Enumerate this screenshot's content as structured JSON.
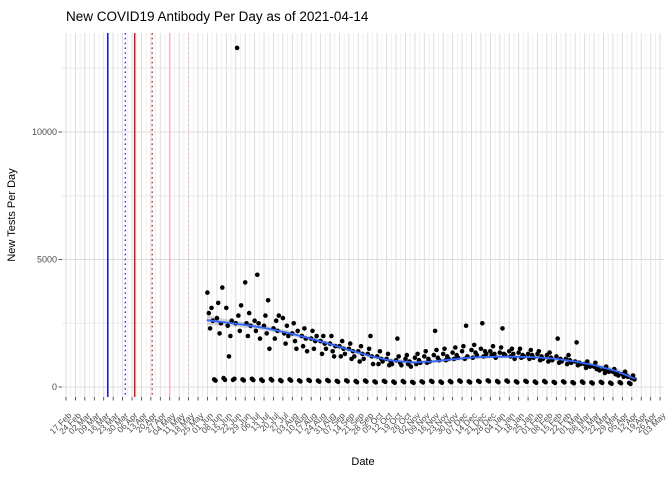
{
  "chart_data": {
    "type": "scatter",
    "title": "New COVID19 Antibody Per Day as of 2021-04-14",
    "xlabel": "Date",
    "ylabel": "New Tests Per Day",
    "legend_position": "none",
    "grid": "major+minor",
    "x_start_date": "2020-02-17",
    "x_break_labels": [
      "17 Feb",
      "24 Feb",
      "02 Mar",
      "09 Mar",
      "16 Mar",
      "23 Mar",
      "30 Mar",
      "06 Apr",
      "13 Apr",
      "20 Apr",
      "27 Apr",
      "04 May",
      "11 May",
      "18 May",
      "25 May",
      "01 Jun",
      "08 Jun",
      "15 Jun",
      "22 Jun",
      "29 Jun",
      "06 Jul",
      "13 Jul",
      "20 Jul",
      "27 Jul",
      "03 Aug",
      "10 Aug",
      "17 Aug",
      "24 Aug",
      "31 Aug",
      "07 Sep",
      "14 Sep",
      "21 Sep",
      "28 Sep",
      "05 Oct",
      "12 Oct",
      "19 Oct",
      "26 Oct",
      "02 Nov",
      "09 Nov",
      "16 Nov",
      "23 Nov",
      "30 Nov",
      "07 Dec",
      "14 Dec",
      "21 Dec",
      "28 Dec",
      "04 Jan",
      "11 Jan",
      "18 Jan",
      "25 Jan",
      "01 Feb",
      "08 Feb",
      "15 Feb",
      "22 Feb",
      "01 Mar",
      "08 Mar",
      "15 Mar",
      "22 Mar",
      "29 Mar",
      "05 Apr",
      "12 Apr",
      "19 Apr",
      "26 Apr",
      "03 May"
    ],
    "y_major_ticks": [
      0,
      5000,
      10000
    ],
    "y_tick_labels": [
      "0",
      "5000",
      "10000"
    ],
    "y_minor_gridlines": [
      2500,
      7500,
      12500
    ],
    "ylim": [
      -400,
      13900
    ],
    "colors": {
      "point": "#000000",
      "smooth_line": "#3366ff",
      "ribbon": "#999999",
      "grid_major": "#dcdcdc",
      "grid_minor": "#ececec",
      "tick": "#333333",
      "vline_blue": "#1414d0",
      "vline_red": "#d01414",
      "vline_pink": "#f9b4c4"
    },
    "reference_lines": [
      {
        "date": "2020-03-19",
        "color": "#1414d0",
        "style": "solid"
      },
      {
        "date": "2020-04-01",
        "color": "#1414d0",
        "style": "dotted"
      },
      {
        "date": "2020-04-08",
        "color": "#d01414",
        "style": "solid"
      },
      {
        "date": "2020-04-21",
        "color": "#d01414",
        "style": "dotted"
      },
      {
        "date": "2020-05-04",
        "color": "#f9b4c4",
        "style": "solid"
      },
      {
        "date": "2020-05-18",
        "color": "#f9b4c4",
        "style": "dotted"
      }
    ],
    "points_start_date": "2020-06-01",
    "weekly_points": [
      [
        3700,
        2900,
        2300,
        3100,
        2600,
        300,
        250
      ],
      [
        2700,
        3300,
        2100,
        2500,
        3900,
        350,
        280
      ],
      [
        3100,
        2400,
        1200,
        2000,
        2600,
        280,
        320
      ],
      [
        2500,
        13300,
        2800,
        2200,
        3200,
        300,
        260
      ],
      [
        4100,
        2500,
        2000,
        2900,
        2400,
        320,
        270
      ],
      [
        2600,
        2200,
        4400,
        2500,
        1900,
        290,
        240
      ],
      [
        2400,
        2800,
        2100,
        3400,
        1500,
        310,
        260
      ],
      [
        2300,
        1900,
        2600,
        2200,
        2800,
        270,
        230
      ],
      [
        2700,
        2100,
        1700,
        2400,
        2000,
        300,
        250
      ],
      [
        2100,
        2500,
        1800,
        1500,
        2200,
        260,
        220
      ],
      [
        2000,
        1600,
        2300,
        1900,
        1400,
        280,
        240
      ],
      [
        1900,
        2200,
        1500,
        1800,
        2000,
        250,
        210
      ],
      [
        1800,
        1300,
        2000,
        1700,
        1500,
        270,
        230
      ],
      [
        1700,
        2000,
        1400,
        1200,
        1600,
        240,
        200
      ],
      [
        1600,
        1200,
        1800,
        1500,
        1300,
        260,
        220
      ],
      [
        1500,
        1700,
        1100,
        1400,
        1200,
        230,
        190
      ],
      [
        1400,
        1000,
        1600,
        1300,
        1100,
        250,
        210
      ],
      [
        1300,
        1500,
        2000,
        1200,
        900,
        220,
        180
      ],
      [
        1200,
        900,
        1400,
        1100,
        1000,
        240,
        200
      ],
      [
        1100,
        1300,
        850,
        1000,
        900,
        210,
        170
      ],
      [
        1050,
        1900,
        1200,
        950,
        850,
        230,
        190
      ],
      [
        1100,
        1250,
        900,
        1000,
        800,
        200,
        160
      ],
      [
        1150,
        900,
        1300,
        1050,
        950,
        220,
        180
      ],
      [
        1200,
        1400,
        950,
        1100,
        1000,
        240,
        200
      ],
      [
        1250,
        2200,
        1450,
        1150,
        1050,
        210,
        170
      ],
      [
        1300,
        1500,
        1050,
        1200,
        1100,
        230,
        190
      ],
      [
        1350,
        1100,
        1550,
        1250,
        1150,
        250,
        210
      ],
      [
        1400,
        1600,
        1100,
        2400,
        1200,
        220,
        180
      ],
      [
        1450,
        1150,
        1650,
        1350,
        1250,
        240,
        200
      ],
      [
        1500,
        2500,
        1200,
        1400,
        1300,
        260,
        220
      ],
      [
        1400,
        1250,
        1600,
        1300,
        1150,
        230,
        190
      ],
      [
        1350,
        1550,
        2300,
        1300,
        1250,
        250,
        210
      ],
      [
        1400,
        1200,
        1500,
        1300,
        1100,
        220,
        180
      ],
      [
        1350,
        1500,
        1150,
        1250,
        1200,
        240,
        200
      ],
      [
        1300,
        1100,
        1450,
        1250,
        1150,
        210,
        170
      ],
      [
        1300,
        1400,
        1050,
        1200,
        1100,
        230,
        190
      ],
      [
        1250,
        1000,
        1350,
        1150,
        1050,
        200,
        160
      ],
      [
        1200,
        1900,
        950,
        1100,
        1000,
        220,
        180
      ],
      [
        1100,
        900,
        1250,
        1050,
        950,
        190,
        150
      ],
      [
        1000,
        1750,
        850,
        950,
        900,
        210,
        170
      ],
      [
        900,
        750,
        1000,
        850,
        800,
        180,
        140
      ],
      [
        800,
        950,
        700,
        750,
        650,
        200,
        160
      ],
      [
        700,
        550,
        800,
        650,
        600,
        170,
        130
      ],
      [
        600,
        700,
        500,
        550,
        450,
        190,
        150
      ],
      [
        500,
        400,
        600,
        450,
        400,
        160,
        120
      ],
      [
        350,
        450,
        300
      ]
    ],
    "smooth": {
      "points": [
        [
          "2020-06-01",
          2620,
          190
        ],
        [
          "2020-06-15",
          2530,
          130
        ],
        [
          "2020-07-01",
          2420,
          110
        ],
        [
          "2020-07-15",
          2300,
          100
        ],
        [
          "2020-08-01",
          2110,
          95
        ],
        [
          "2020-08-15",
          1920,
          90
        ],
        [
          "2020-09-01",
          1670,
          85
        ],
        [
          "2020-09-15",
          1440,
          80
        ],
        [
          "2020-10-01",
          1200,
          80
        ],
        [
          "2020-10-15",
          1040,
          75
        ],
        [
          "2020-11-01",
          960,
          75
        ],
        [
          "2020-11-15",
          1000,
          70
        ],
        [
          "2020-12-01",
          1090,
          70
        ],
        [
          "2020-12-15",
          1160,
          70
        ],
        [
          "2021-01-01",
          1190,
          70
        ],
        [
          "2021-01-15",
          1190,
          70
        ],
        [
          "2021-02-01",
          1160,
          70
        ],
        [
          "2021-02-15",
          1100,
          75
        ],
        [
          "2021-03-01",
          1000,
          80
        ],
        [
          "2021-03-15",
          860,
          85
        ],
        [
          "2021-04-01",
          620,
          110
        ],
        [
          "2021-04-14",
          330,
          150
        ]
      ]
    }
  }
}
